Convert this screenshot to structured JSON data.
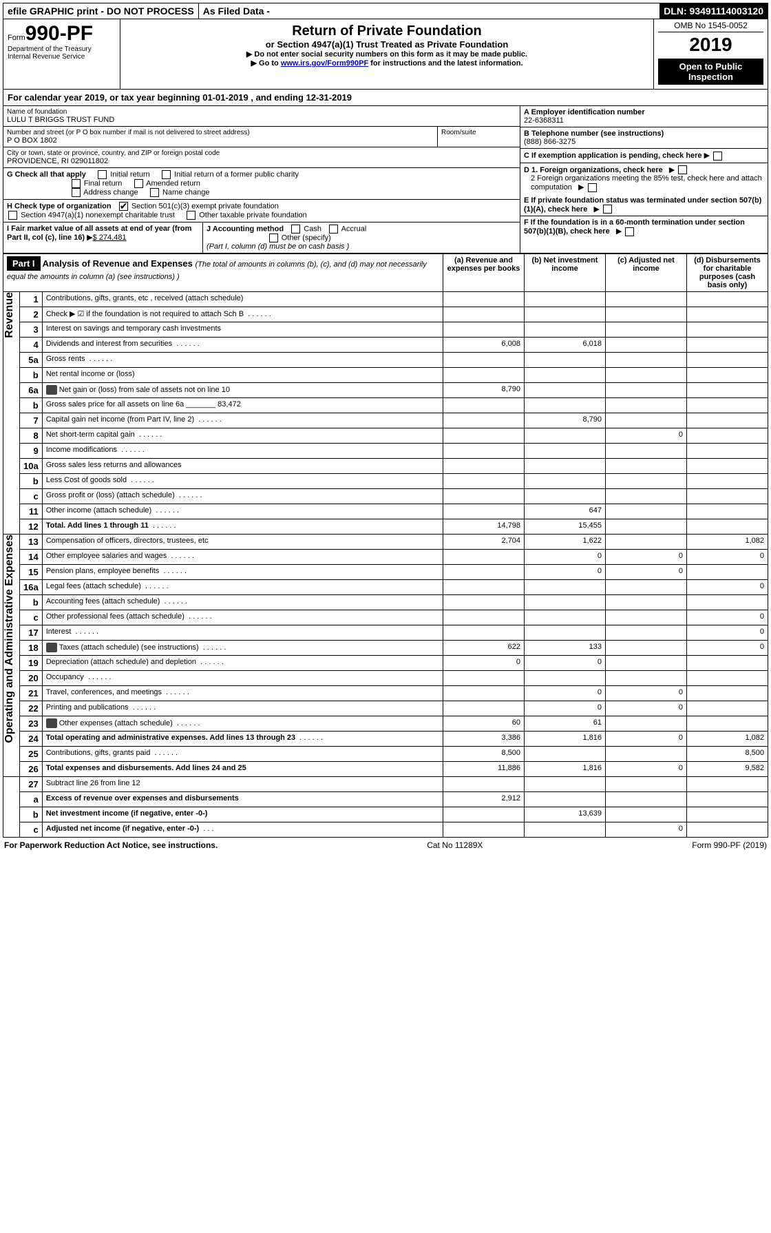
{
  "topbar": {
    "efile": "efile GRAPHIC print - DO NOT PROCESS",
    "asfiled": "As Filed Data -",
    "dln_label": "DLN:",
    "dln": "93491114003120"
  },
  "header": {
    "form_prefix": "Form",
    "form_number": "990-PF",
    "dept1": "Department of the Treasury",
    "dept2": "Internal Revenue Service",
    "title": "Return of Private Foundation",
    "subtitle": "or Section 4947(a)(1) Trust Treated as Private Foundation",
    "note1": "▶ Do not enter social security numbers on this form as it may be made public.",
    "note2_a": "▶ Go to ",
    "note2_link": "www.irs.gov/Form990PF",
    "note2_b": " for instructions and the latest information.",
    "omb": "OMB No 1545-0052",
    "year": "2019",
    "inspection": "Open to Public Inspection"
  },
  "calendar": {
    "label_a": "For calendar year 2019, or tax year beginning ",
    "begin": "01-01-2019",
    "label_b": " , and ending ",
    "end": "12-31-2019"
  },
  "identity": {
    "name_label": "Name of foundation",
    "name": "LULU T BRIGGS TRUST FUND",
    "addr_label": "Number and street (or P O  box number if mail is not delivered to street address)",
    "addr": "P O BOX 1802",
    "room_label": "Room/suite",
    "city_label": "City or town, state or province, country, and ZIP or foreign postal code",
    "city": "PROVIDENCE, RI  029011802",
    "ein_label": "A Employer identification number",
    "ein": "22-6368311",
    "phone_label": "B Telephone number (see instructions)",
    "phone": "(888) 866-3275",
    "c_label": "C If exemption application is pending, check here"
  },
  "g": {
    "label": "G Check all that apply",
    "opt1": "Initial return",
    "opt2": "Initial return of a former public charity",
    "opt3": "Final return",
    "opt4": "Amended return",
    "opt5": "Address change",
    "opt6": "Name change"
  },
  "h": {
    "label": "H Check type of organization",
    "opt1": "Section 501(c)(3) exempt private foundation",
    "opt2": "Section 4947(a)(1) nonexempt charitable trust",
    "opt3": "Other taxable private foundation"
  },
  "d_e_f": {
    "d1": "D 1. Foreign organizations, check here",
    "d2": "2  Foreign organizations meeting the 85% test, check here and attach computation",
    "e": "E  If private foundation status was terminated under section 507(b)(1)(A), check here",
    "f": "F  If the foundation is in a 60-month termination under section 507(b)(1)(B), check here"
  },
  "i": {
    "label": "I Fair market value of all assets at end of year (from Part II, col  (c), line 16)",
    "arrow": "▶",
    "amount": "$  274,481"
  },
  "j": {
    "label": "J Accounting method",
    "cash": "Cash",
    "accrual": "Accrual",
    "other": "Other (specify)",
    "note": "(Part I, column (d) must be on cash basis )"
  },
  "part1": {
    "label": "Part I",
    "heading": "Analysis of Revenue and Expenses",
    "subheading": "(The total of amounts in columns (b), (c), and (d) may not necessarily equal the amounts in column (a) (see instructions) )",
    "col_a": "(a)  Revenue and expenses per books",
    "col_b": "(b)  Net investment income",
    "col_c": "(c)  Adjusted net income",
    "col_d": "(d)  Disbursements for charitable purposes (cash basis only)",
    "rev_label": "Revenue",
    "exp_label": "Operating and Administrative Expenses"
  },
  "rows": [
    {
      "n": "1",
      "desc": "Contributions, gifts, grants, etc , received (attach schedule)",
      "a": "",
      "b": "",
      "c": "",
      "d": ""
    },
    {
      "n": "2",
      "desc": "Check ▶ ☑ if the foundation is not required to attach Sch  B",
      "a": "",
      "b": "",
      "c": "",
      "d": "",
      "dots": true
    },
    {
      "n": "3",
      "desc": "Interest on savings and temporary cash investments",
      "a": "",
      "b": "",
      "c": "",
      "d": ""
    },
    {
      "n": "4",
      "desc": "Dividends and interest from securities",
      "a": "6,008",
      "b": "6,018",
      "c": "",
      "d": "",
      "dots": true
    },
    {
      "n": "5a",
      "desc": "Gross rents",
      "a": "",
      "b": "",
      "c": "",
      "d": "",
      "dots": true
    },
    {
      "n": "b",
      "desc": "Net rental income or (loss)",
      "a": "",
      "b": "",
      "c": "",
      "d": ""
    },
    {
      "n": "6a",
      "desc": "Net gain or (loss) from sale of assets not on line 10",
      "a": "8,790",
      "b": "",
      "c": "",
      "d": "",
      "icon": true
    },
    {
      "n": "b",
      "desc": "Gross sales price for all assets on line 6a _______ 83,472",
      "a": "",
      "b": "",
      "c": "",
      "d": ""
    },
    {
      "n": "7",
      "desc": "Capital gain net income (from Part IV, line 2)",
      "a": "",
      "b": "8,790",
      "c": "",
      "d": "",
      "dots": true
    },
    {
      "n": "8",
      "desc": "Net short-term capital gain",
      "a": "",
      "b": "",
      "c": "0",
      "d": "",
      "dots": true
    },
    {
      "n": "9",
      "desc": "Income modifications",
      "a": "",
      "b": "",
      "c": "",
      "d": "",
      "dots": true
    },
    {
      "n": "10a",
      "desc": "Gross sales less returns and allowances",
      "a": "",
      "b": "",
      "c": "",
      "d": ""
    },
    {
      "n": "b",
      "desc": "Less  Cost of goods sold",
      "a": "",
      "b": "",
      "c": "",
      "d": "",
      "dots": true
    },
    {
      "n": "c",
      "desc": "Gross profit or (loss) (attach schedule)",
      "a": "",
      "b": "",
      "c": "",
      "d": "",
      "dots": true
    },
    {
      "n": "11",
      "desc": "Other income (attach schedule)",
      "a": "",
      "b": "647",
      "c": "",
      "d": "",
      "dots": true
    },
    {
      "n": "12",
      "desc": "Total. Add lines 1 through 11",
      "a": "14,798",
      "b": "15,455",
      "c": "",
      "d": "",
      "bold": true,
      "dots": true
    }
  ],
  "exp_rows": [
    {
      "n": "13",
      "desc": "Compensation of officers, directors, trustees, etc",
      "a": "2,704",
      "b": "1,622",
      "c": "",
      "d": "1,082"
    },
    {
      "n": "14",
      "desc": "Other employee salaries and wages",
      "a": "",
      "b": "0",
      "c": "0",
      "d": "0",
      "dots": true
    },
    {
      "n": "15",
      "desc": "Pension plans, employee benefits",
      "a": "",
      "b": "0",
      "c": "0",
      "d": "",
      "dots": true
    },
    {
      "n": "16a",
      "desc": "Legal fees (attach schedule)",
      "a": "",
      "b": "",
      "c": "",
      "d": "0",
      "dots": true
    },
    {
      "n": "b",
      "desc": "Accounting fees (attach schedule)",
      "a": "",
      "b": "",
      "c": "",
      "d": "",
      "dots": true
    },
    {
      "n": "c",
      "desc": "Other professional fees (attach schedule)",
      "a": "",
      "b": "",
      "c": "",
      "d": "0",
      "dots": true
    },
    {
      "n": "17",
      "desc": "Interest",
      "a": "",
      "b": "",
      "c": "",
      "d": "0",
      "dots": true
    },
    {
      "n": "18",
      "desc": "Taxes (attach schedule) (see instructions)",
      "a": "622",
      "b": "133",
      "c": "",
      "d": "0",
      "dots": true,
      "icon": true
    },
    {
      "n": "19",
      "desc": "Depreciation (attach schedule) and depletion",
      "a": "0",
      "b": "0",
      "c": "",
      "d": "",
      "dots": true
    },
    {
      "n": "20",
      "desc": "Occupancy",
      "a": "",
      "b": "",
      "c": "",
      "d": "",
      "dots": true
    },
    {
      "n": "21",
      "desc": "Travel, conferences, and meetings",
      "a": "",
      "b": "0",
      "c": "0",
      "d": "",
      "dots": true
    },
    {
      "n": "22",
      "desc": "Printing and publications",
      "a": "",
      "b": "0",
      "c": "0",
      "d": "",
      "dots": true
    },
    {
      "n": "23",
      "desc": "Other expenses (attach schedule)",
      "a": "60",
      "b": "61",
      "c": "",
      "d": "",
      "dots": true,
      "icon": true
    },
    {
      "n": "24",
      "desc": "Total operating and administrative expenses. Add lines 13 through 23",
      "a": "3,386",
      "b": "1,816",
      "c": "0",
      "d": "1,082",
      "bold": true,
      "dots": true
    },
    {
      "n": "25",
      "desc": "Contributions, gifts, grants paid",
      "a": "8,500",
      "b": "",
      "c": "",
      "d": "8,500",
      "dots": true
    },
    {
      "n": "26",
      "desc": "Total expenses and disbursements. Add lines 24 and 25",
      "a": "11,886",
      "b": "1,816",
      "c": "0",
      "d": "9,582",
      "bold": true
    }
  ],
  "bottom_rows": [
    {
      "n": "27",
      "desc": "Subtract line 26 from line 12",
      "a": "",
      "b": "",
      "c": "",
      "d": ""
    },
    {
      "n": "a",
      "desc": "Excess of revenue over expenses and disbursements",
      "a": "2,912",
      "b": "",
      "c": "",
      "d": "",
      "bold": true
    },
    {
      "n": "b",
      "desc": "Net investment income (if negative, enter -0-)",
      "a": "",
      "b": "13,639",
      "c": "",
      "d": "",
      "bold": true
    },
    {
      "n": "c",
      "desc": "Adjusted net income (if negative, enter -0-)",
      "a": "",
      "b": "",
      "c": "0",
      "d": "",
      "bold": true,
      "dots": true
    }
  ],
  "footer": {
    "left": "For Paperwork Reduction Act Notice, see instructions.",
    "center": "Cat  No  11289X",
    "right": "Form 990-PF (2019)"
  }
}
